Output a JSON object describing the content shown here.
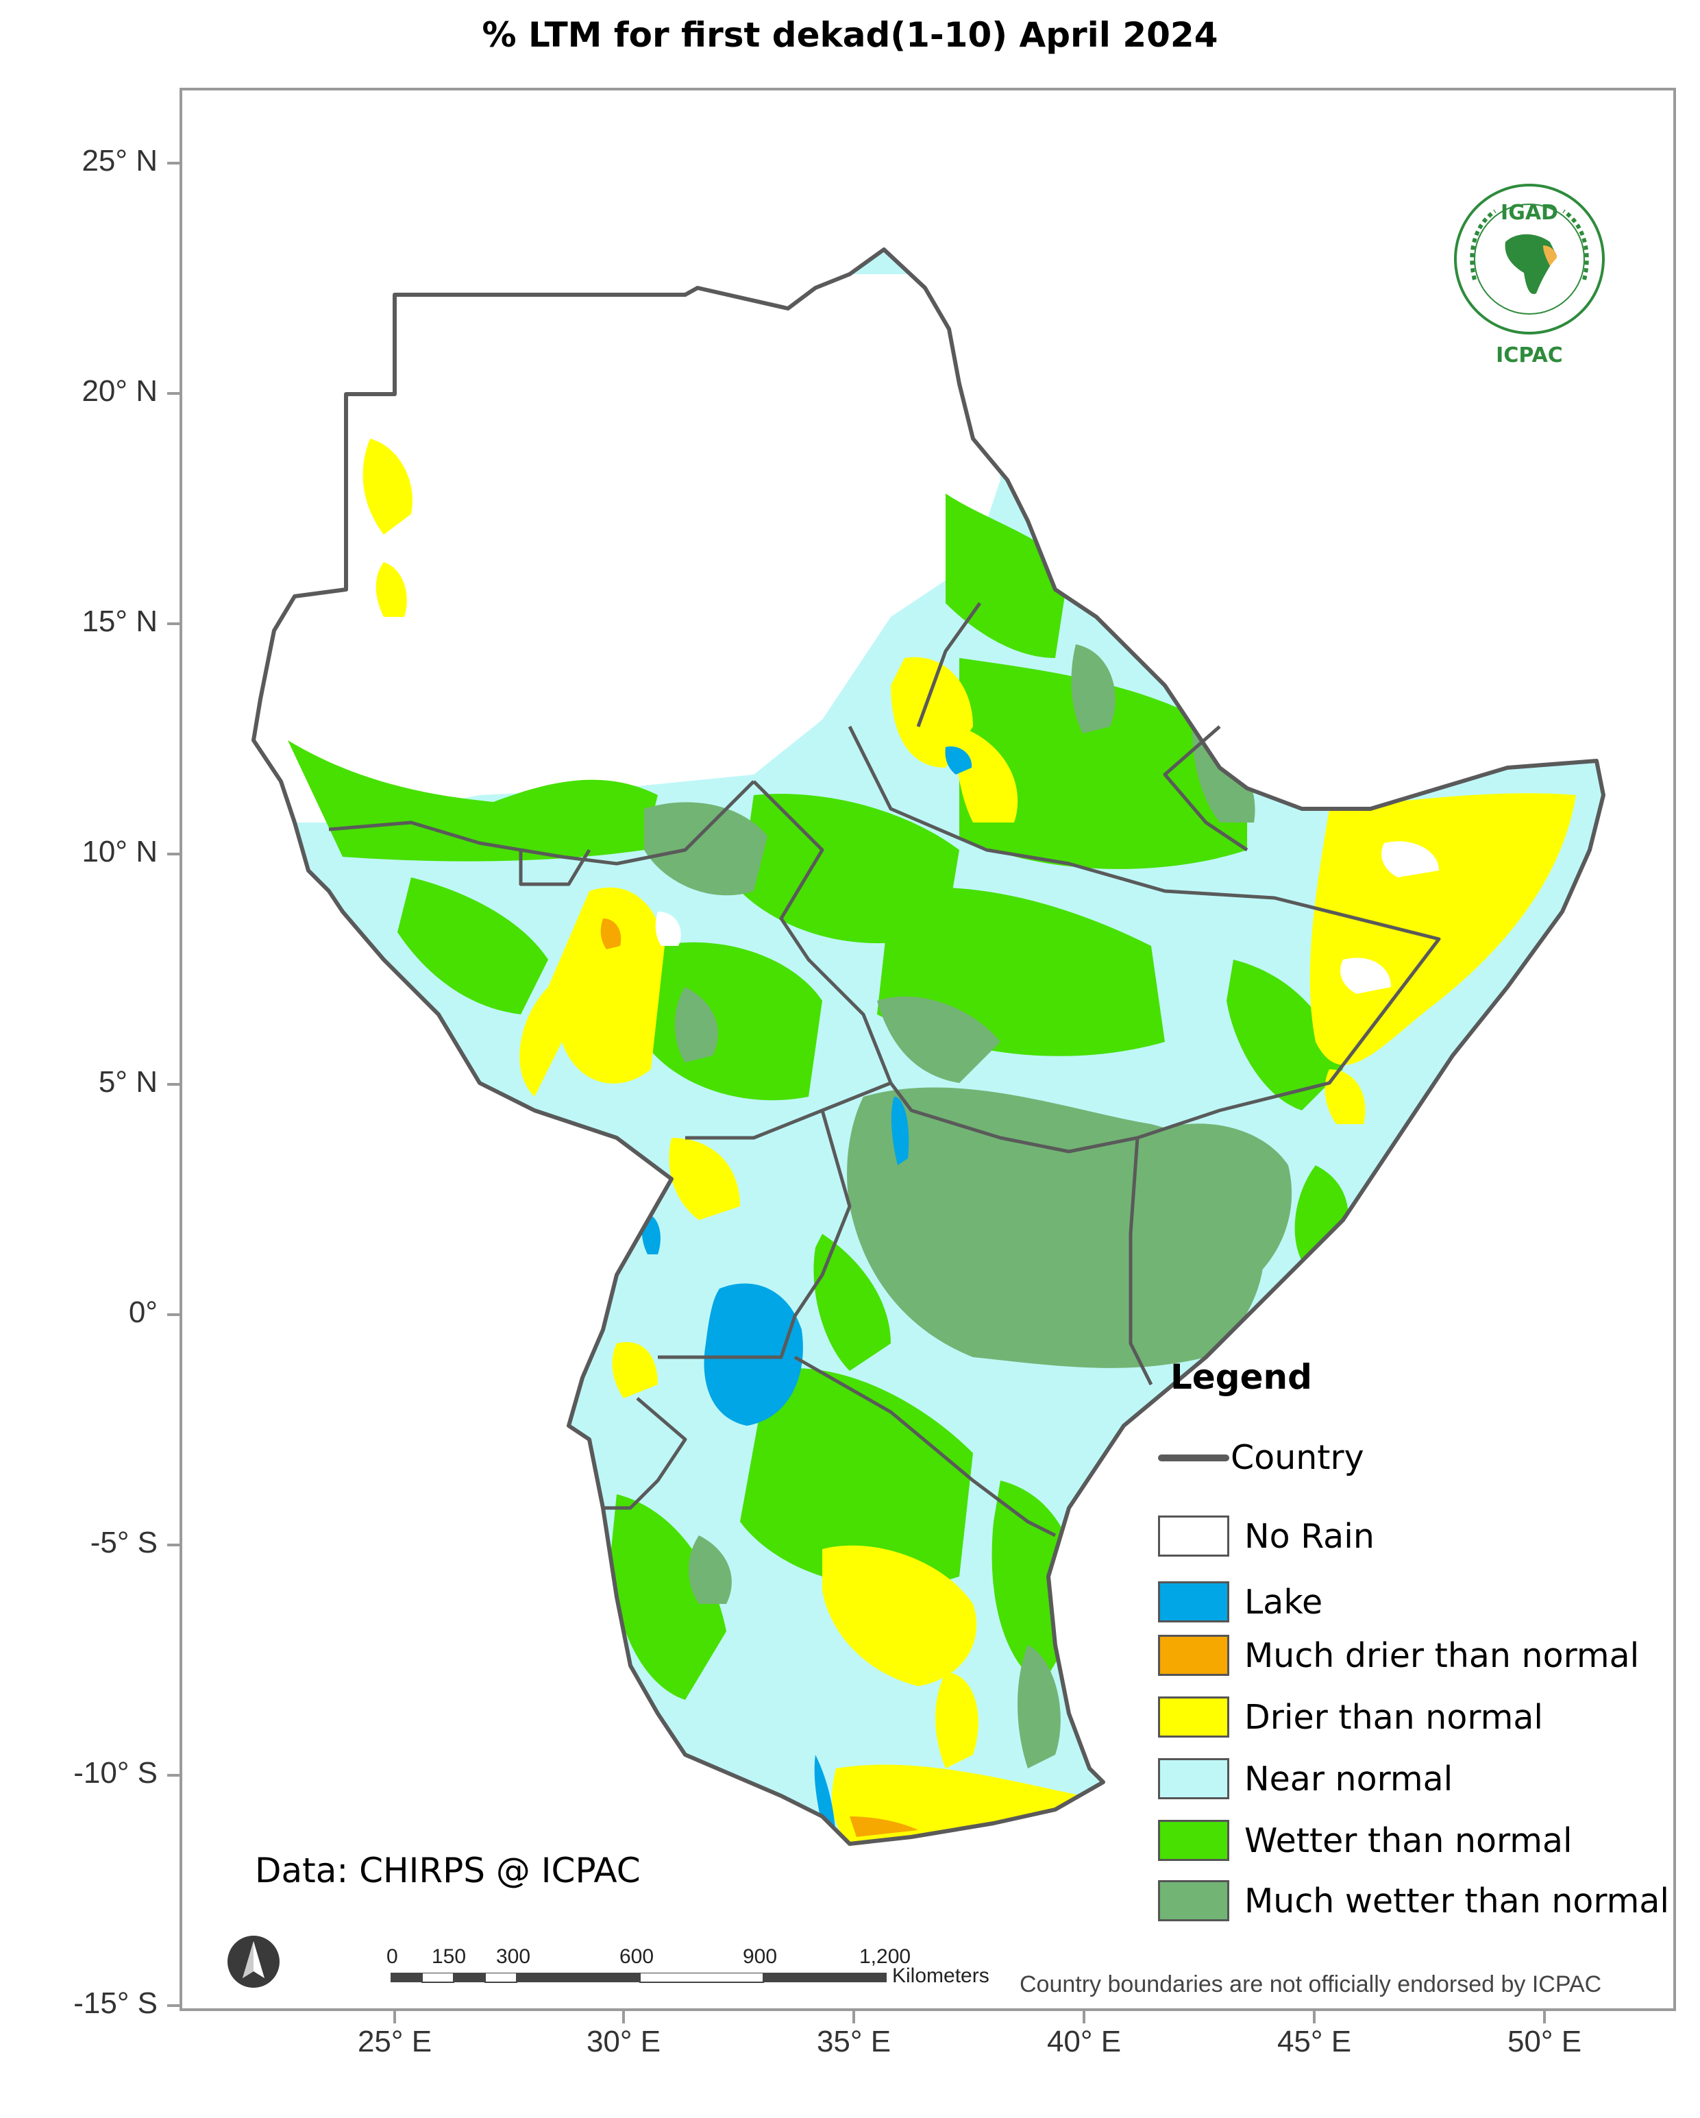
{
  "title": "% LTM  for first dekad(1-10) April 2024",
  "axes": {
    "lat_labels": [
      "25° N",
      "20° N",
      "15° N",
      "10° N",
      "5° N",
      "0°",
      "-5° S",
      "-10° S",
      "-15° S"
    ],
    "lon_labels": [
      "25° E",
      "30° E",
      "35° E",
      "40° E",
      "45° E",
      "50° E"
    ]
  },
  "legend": {
    "title": "Legend",
    "country": "Country",
    "items": [
      {
        "label": "No Rain",
        "color": "#ffffff"
      },
      {
        "label": "Lake",
        "color": "#00a6e6"
      },
      {
        "label": "Much drier than normal",
        "color": "#f6a700"
      },
      {
        "label": "Drier than normal",
        "color": "#ffff00"
      },
      {
        "label": "Near normal",
        "color": "#bff7f7"
      },
      {
        "label": "Wetter than normal",
        "color": "#47e000"
      },
      {
        "label": "Much wetter than normal",
        "color": "#72b474"
      }
    ]
  },
  "credit": "Data: CHIRPS @ ICPAC",
  "disclaimer": "Country boundaries are not officially endorsed by ICPAC",
  "scalebar": {
    "labels": [
      "0",
      "150",
      "300",
      "600",
      "900",
      "1,200"
    ],
    "unit": "Kilometers"
  },
  "logo": {
    "top_text": "IGAD",
    "bottom_text": "ICPAC"
  },
  "colors": {
    "frame": "#9a9a9a",
    "country_border": "#5a5a5a"
  }
}
